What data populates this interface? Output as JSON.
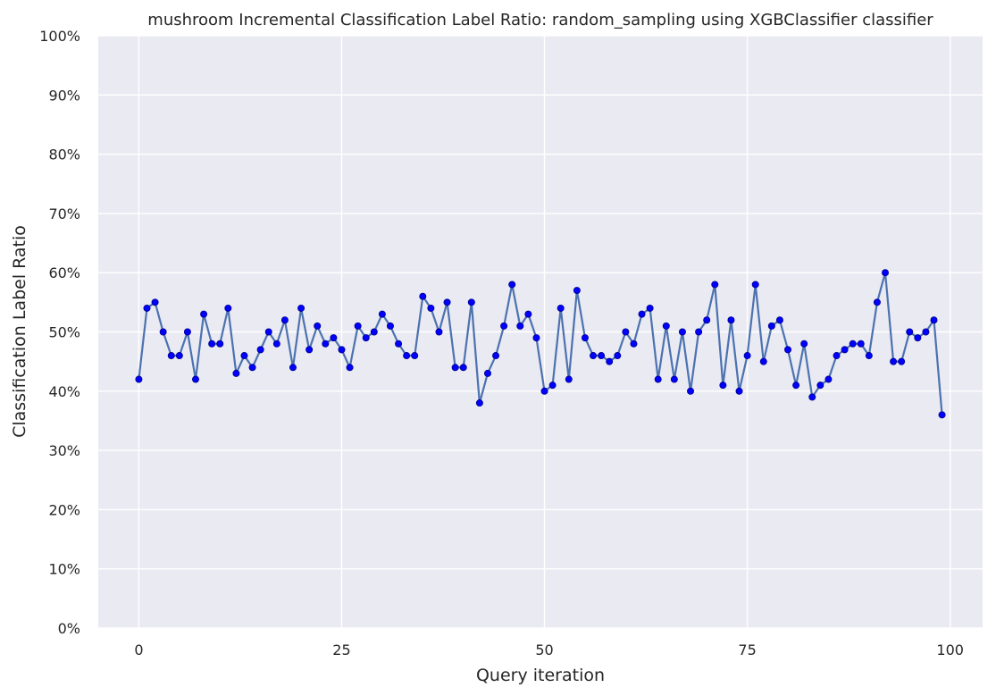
{
  "chart_data": {
    "type": "line",
    "title": "mushroom Incremental Classification Label Ratio: random_sampling using XGBClassifier classifier",
    "xlabel": "Query iteration",
    "ylabel": "Classification Label Ratio",
    "xlim": [
      -5,
      104
    ],
    "ylim": [
      0,
      100
    ],
    "x_ticks": [
      0,
      25,
      50,
      75,
      100
    ],
    "y_ticks": [
      0,
      10,
      20,
      30,
      40,
      50,
      60,
      70,
      80,
      90,
      100
    ],
    "y_tick_labels": [
      "0%",
      "10%",
      "20%",
      "30%",
      "40%",
      "50%",
      "60%",
      "70%",
      "80%",
      "90%",
      "100%"
    ],
    "grid": true,
    "legend": "none",
    "colors": {
      "background": "#eaeaf2",
      "grid": "#ffffff",
      "line": "#4c72b0",
      "marker": "#0000ff",
      "marker_edge": "#00008b"
    },
    "x": [
      0,
      1,
      2,
      3,
      4,
      5,
      6,
      7,
      8,
      9,
      10,
      11,
      12,
      13,
      14,
      15,
      16,
      17,
      18,
      19,
      20,
      21,
      22,
      23,
      24,
      25,
      26,
      27,
      28,
      29,
      30,
      31,
      32,
      33,
      34,
      35,
      36,
      37,
      38,
      39,
      40,
      41,
      42,
      43,
      44,
      45,
      46,
      47,
      48,
      49,
      50,
      51,
      52,
      53,
      54,
      55,
      56,
      57,
      58,
      59,
      60,
      61,
      62,
      63,
      64,
      65,
      66,
      67,
      68,
      69,
      70,
      71,
      72,
      73,
      74,
      75,
      76,
      77,
      78,
      79,
      80,
      81,
      82,
      83,
      84,
      85,
      86,
      87,
      88,
      89,
      90,
      91,
      92,
      93,
      94,
      95,
      96,
      97,
      98,
      99
    ],
    "series": [
      {
        "values": [
          42,
          54,
          55,
          50,
          46,
          46,
          50,
          42,
          53,
          48,
          48,
          54,
          43,
          46,
          44,
          47,
          50,
          48,
          52,
          44,
          54,
          47,
          51,
          48,
          49,
          47,
          44,
          51,
          49,
          50,
          53,
          51,
          48,
          46,
          46,
          56,
          54,
          50,
          55,
          44,
          44,
          55,
          38,
          43,
          46,
          51,
          58,
          51,
          53,
          49,
          40,
          41,
          54,
          42,
          57,
          49,
          46,
          46,
          45,
          46,
          50,
          48,
          53,
          54,
          42,
          51,
          42,
          50,
          40,
          50,
          52,
          58,
          41,
          52,
          40,
          46,
          58,
          45,
          51,
          52,
          47,
          41,
          48,
          39,
          41,
          42,
          46,
          47,
          48,
          48,
          46,
          55,
          60,
          45,
          45,
          50,
          49,
          50,
          52,
          36
        ]
      }
    ]
  }
}
